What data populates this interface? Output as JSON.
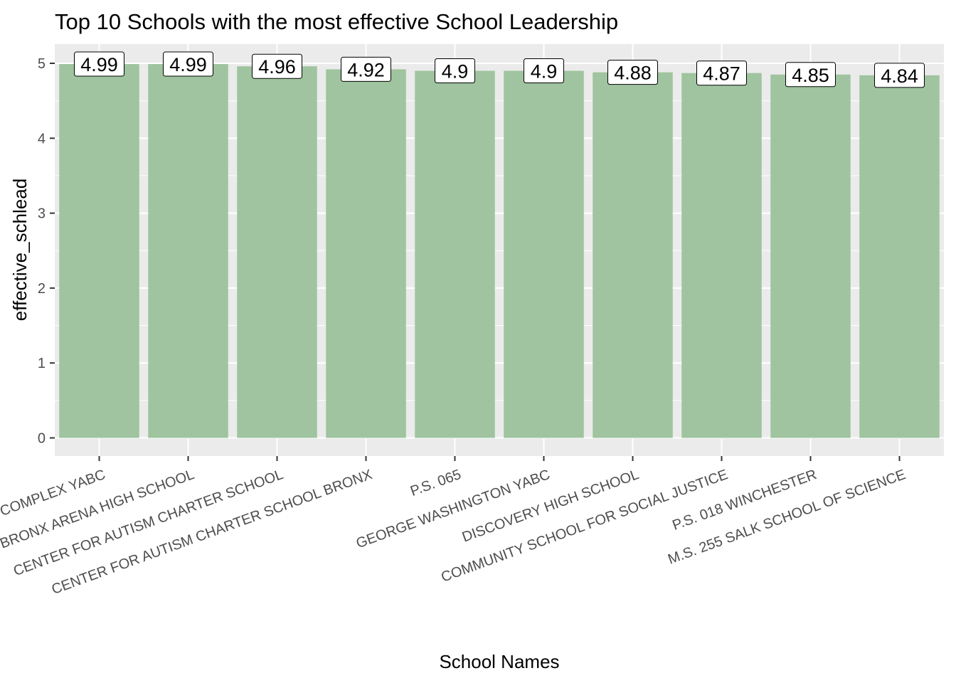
{
  "chart_data": {
    "type": "bar",
    "title": "Top 10 Schools with the most effective School Leadership",
    "xlabel": "School Names",
    "ylabel": "effective_schlead",
    "ylim": [
      0,
      5.25
    ],
    "yticks": [
      0,
      1,
      2,
      3,
      4,
      5
    ],
    "grid": true,
    "legend": "none",
    "bar_color": "#9fc49f",
    "panel_color": "#ebebeb",
    "categories": [
      "COMPLEX YABC",
      "BRONX ARENA HIGH SCHOOL",
      "CENTER FOR AUTISM CHARTER SCHOOL",
      "CENTER FOR AUTISM CHARTER SCHOOL BRONX",
      "P.S. 065",
      "GEORGE WASHINGTON YABC",
      "DISCOVERY HIGH SCHOOL",
      "COMMUNITY SCHOOL FOR SOCIAL JUSTICE",
      "P.S. 018 WINCHESTER",
      "M.S. 255 SALK SCHOOL OF SCIENCE"
    ],
    "values": [
      4.99,
      4.99,
      4.96,
      4.92,
      4.9,
      4.9,
      4.88,
      4.87,
      4.85,
      4.84
    ],
    "data_labels": [
      "4.99",
      "4.99",
      "4.96",
      "4.92",
      "4.9",
      "4.9",
      "4.88",
      "4.87",
      "4.85",
      "4.84"
    ]
  }
}
